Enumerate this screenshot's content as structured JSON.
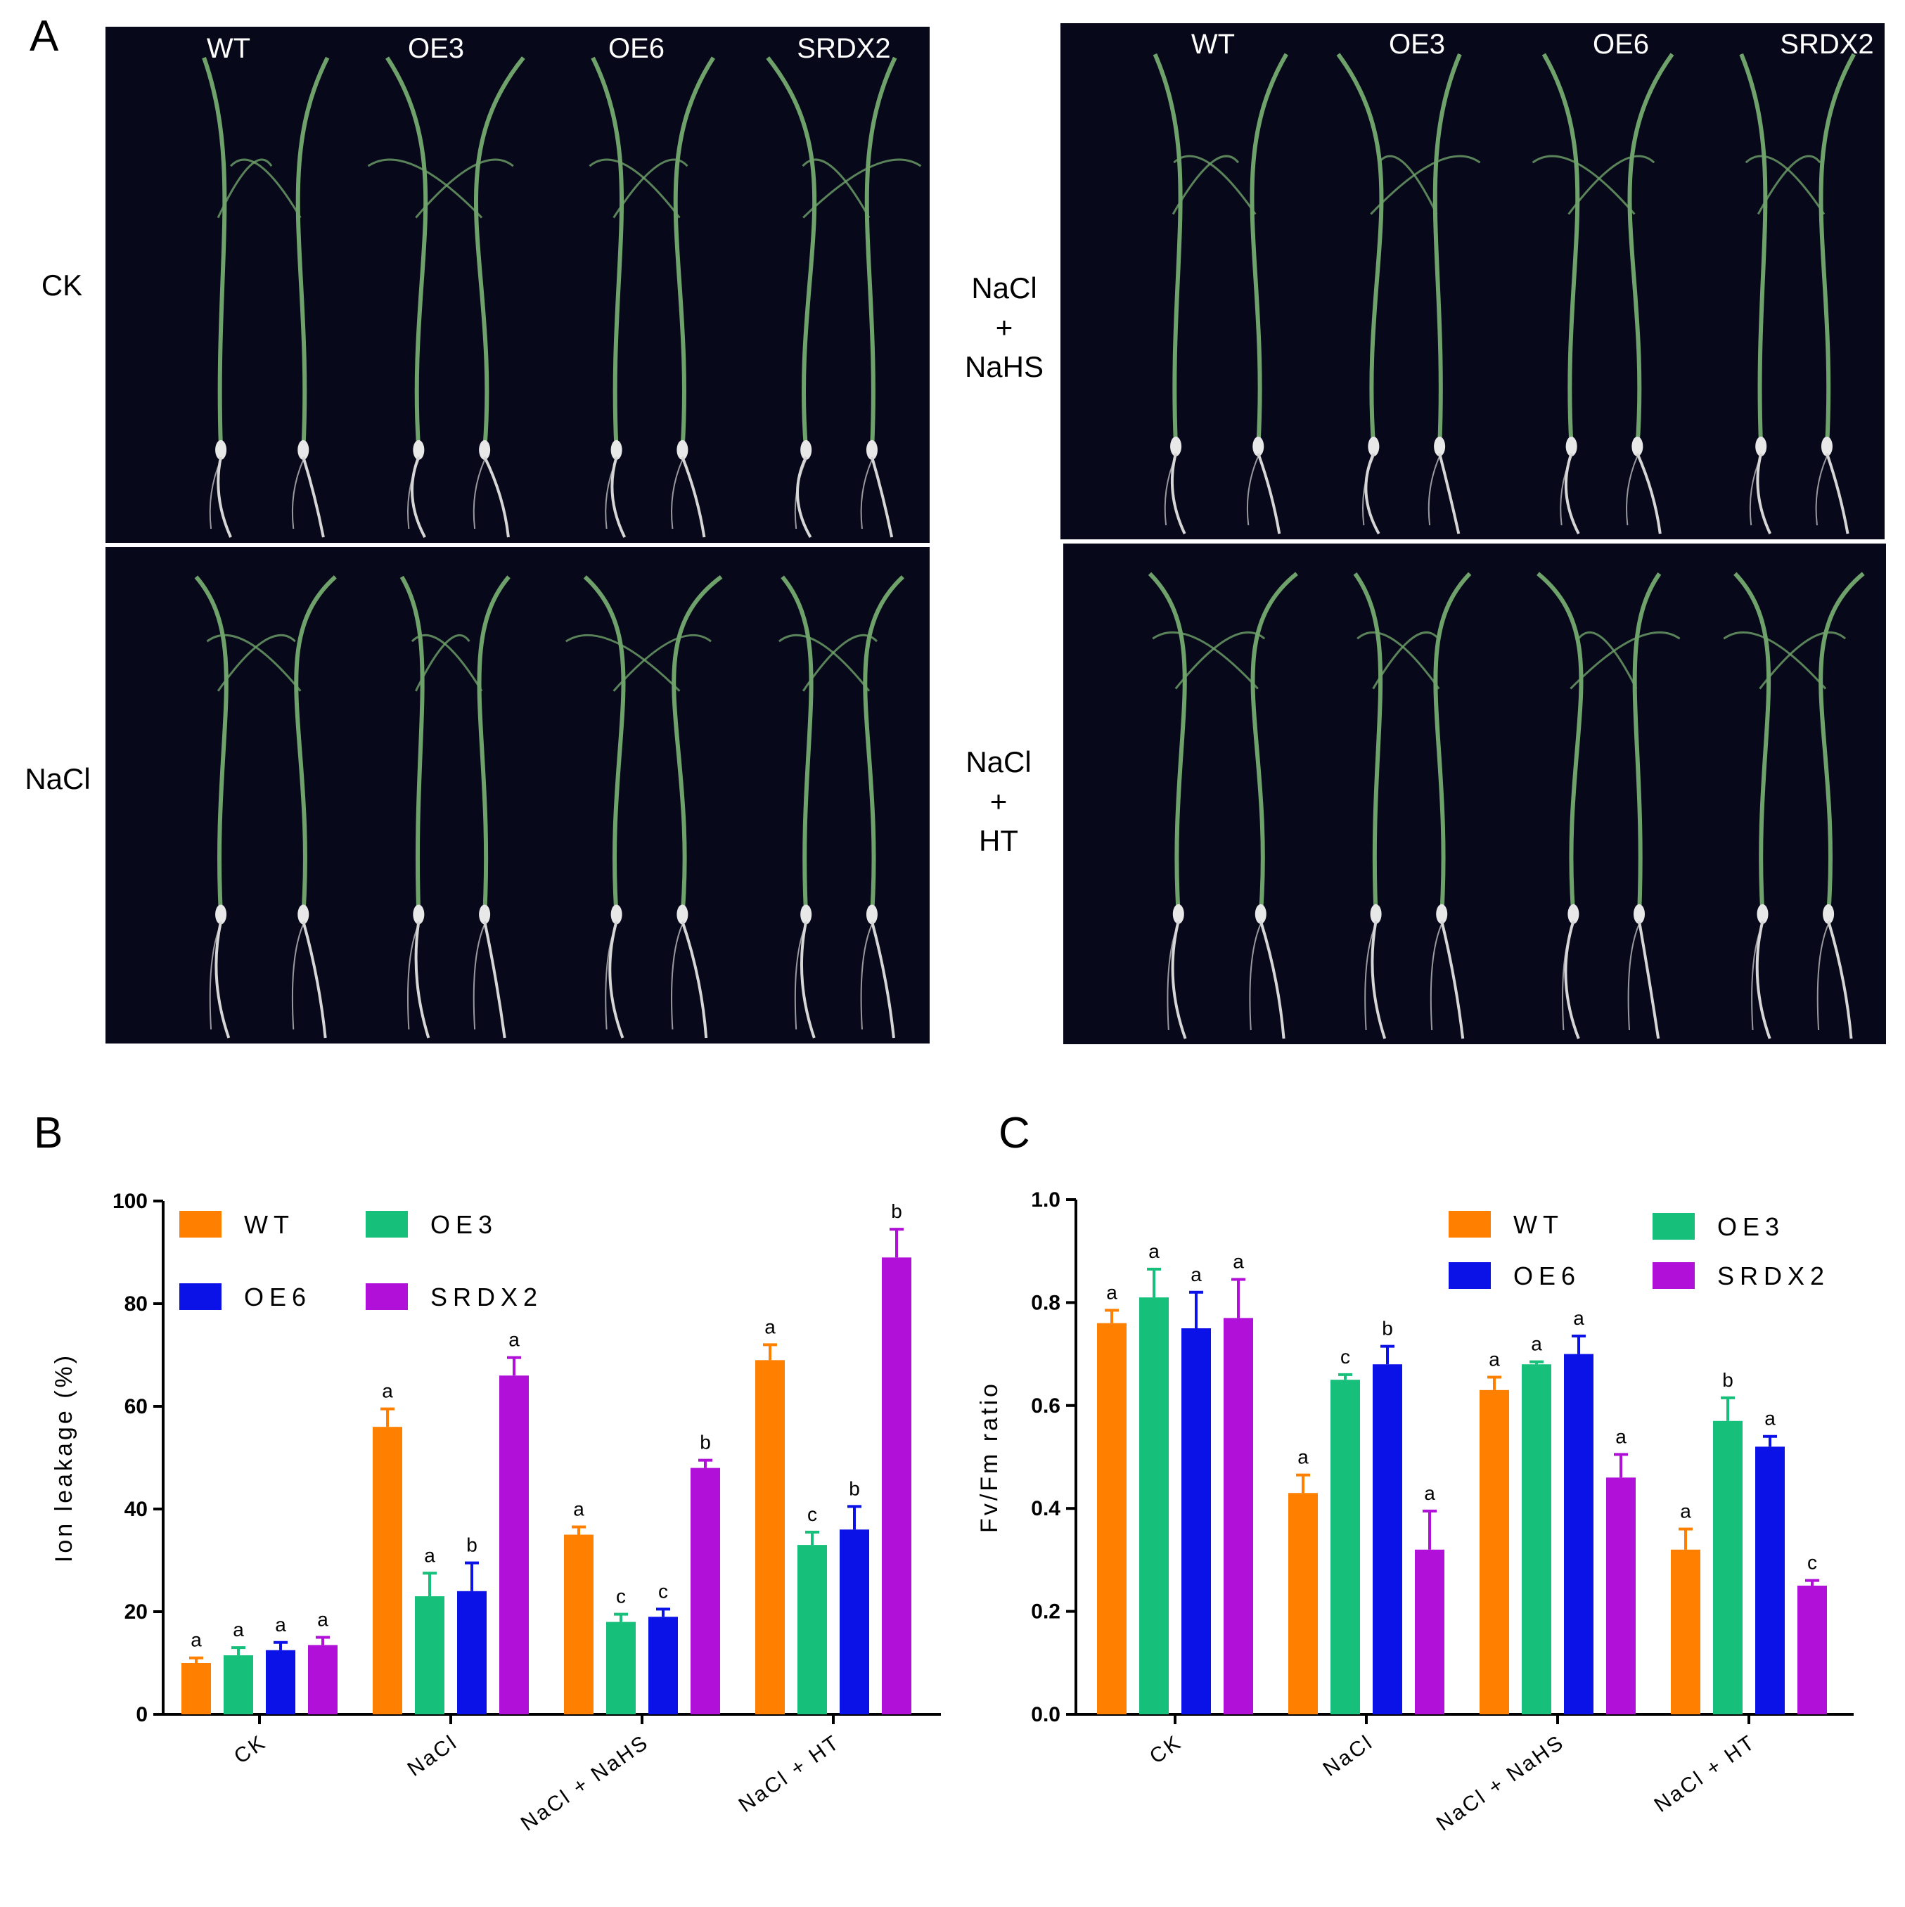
{
  "figure": {
    "panel_a": {
      "letter": "A",
      "genotypes": [
        "WT",
        "OE3",
        "OE6",
        "SRDX2"
      ],
      "photos": [
        {
          "condition": [
            "CK"
          ]
        },
        {
          "condition": [
            "NaCl",
            "+",
            "NaHS"
          ]
        },
        {
          "condition": [
            "NaCl"
          ]
        },
        {
          "condition": [
            "NaCl",
            "+",
            "HT"
          ]
        }
      ]
    }
  },
  "colors": {
    "WT": "#FF7F00",
    "OE3": "#16C07A",
    "OE6": "#0A12E8",
    "SRDX2": "#B010D8",
    "photo_background": "#07091a",
    "leaf": "#6fa26a",
    "root": "#d6d6d6"
  },
  "chart_data": [
    {
      "panel": "B",
      "type": "bar",
      "title": "",
      "xlabel": "",
      "ylabel": "Ion leakage (%)",
      "ylim": [
        0,
        100
      ],
      "yticks": [
        "0",
        "20",
        "40",
        "60",
        "80",
        "100"
      ],
      "categories": [
        "CK",
        "NaCl",
        "NaCl + NaHS",
        "NaCl + HT"
      ],
      "legend_position": "top-left",
      "series": [
        {
          "name": "WT",
          "values": [
            10,
            56,
            35,
            69
          ],
          "errors": [
            1,
            3.5,
            1.5,
            3
          ],
          "letters": [
            "a",
            "a",
            "a",
            "a"
          ]
        },
        {
          "name": "OE3",
          "values": [
            11.5,
            23,
            18,
            33
          ],
          "errors": [
            1.5,
            4.5,
            1.5,
            2.5
          ],
          "letters": [
            "a",
            "a",
            "c",
            "c"
          ]
        },
        {
          "name": "OE6",
          "values": [
            12.5,
            24,
            19,
            36
          ],
          "errors": [
            1.5,
            5.5,
            1.5,
            4.5
          ],
          "letters": [
            "a",
            "b",
            "c",
            "b"
          ]
        },
        {
          "name": "SRDX2",
          "values": [
            13.5,
            66,
            48,
            89
          ],
          "errors": [
            1.5,
            3.5,
            1.5,
            5.5
          ],
          "letters": [
            "a",
            "a",
            "b",
            "b"
          ]
        }
      ]
    },
    {
      "panel": "C",
      "type": "bar",
      "title": "",
      "xlabel": "",
      "ylabel": "Fv/Fm ratio",
      "ylim": [
        0,
        1.0
      ],
      "yticks": [
        "0.0",
        "0.2",
        "0.4",
        "0.6",
        "0.8",
        "1.0"
      ],
      "categories": [
        "CK",
        "NaCl",
        "NaCl + NaHS",
        "NaCl + HT"
      ],
      "legend_position": "top-right",
      "series": [
        {
          "name": "WT",
          "values": [
            0.76,
            0.43,
            0.63,
            0.32
          ],
          "errors": [
            0.025,
            0.035,
            0.025,
            0.04
          ],
          "letters": [
            "a",
            "a",
            "a",
            "a"
          ]
        },
        {
          "name": "OE3",
          "values": [
            0.81,
            0.65,
            0.68,
            0.57
          ],
          "errors": [
            0.055,
            0.01,
            0.005,
            0.045
          ],
          "letters": [
            "a",
            "c",
            "a",
            "b"
          ]
        },
        {
          "name": "OE6",
          "values": [
            0.75,
            0.68,
            0.7,
            0.52
          ],
          "errors": [
            0.07,
            0.035,
            0.035,
            0.02
          ],
          "letters": [
            "a",
            "b",
            "a",
            "a"
          ]
        },
        {
          "name": "SRDX2",
          "values": [
            0.77,
            0.32,
            0.46,
            0.25
          ],
          "errors": [
            0.075,
            0.075,
            0.045,
            0.01
          ],
          "letters": [
            "a",
            "a",
            "a",
            "c"
          ]
        }
      ]
    }
  ]
}
